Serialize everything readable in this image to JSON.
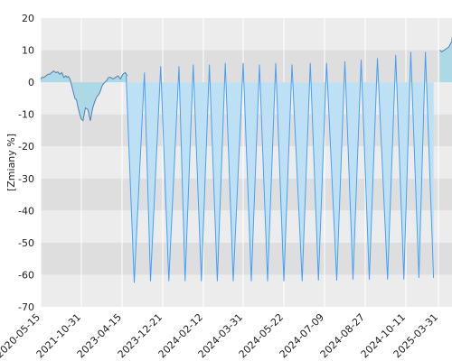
{
  "chart_data": {
    "type": "area",
    "ylabel": "[Zmiany %]",
    "xlabel": "",
    "title": "",
    "ylim": [
      -70,
      20
    ],
    "yticks": [
      20,
      10,
      0,
      -10,
      -20,
      -30,
      -40,
      -50,
      -60,
      -70
    ],
    "xticks": [
      "2020-05-15",
      "2021-10-31",
      "2023-04-15",
      "2023-12-21",
      "2024-02-12",
      "2024-03-31",
      "2024-05-22",
      "2024-07-09",
      "2024-08-27",
      "2024-10-11",
      "2025-03-31"
    ],
    "grid": true,
    "colors": {
      "fill": "#add8e6",
      "bar_fill": "#bde0f4",
      "line": "#4f7fb0",
      "bar_line": "#4a9ff5",
      "band_dark": "#dedede",
      "band_light": "#ececec",
      "gridline": "#ffffff"
    },
    "series": [
      {
        "x_tick_position": [
          0,
          0.03,
          0.08,
          0.13,
          0.18,
          0.22,
          0.27,
          0.32,
          0.37,
          0.42,
          0.47,
          0.52,
          0.57,
          0.62,
          0.65,
          0.68,
          0.72,
          0.76,
          0.8,
          0.84,
          0.88,
          0.92,
          0.96,
          1.0,
          1.04,
          1.1,
          1.16,
          1.22,
          1.28,
          1.33,
          1.38,
          1.42,
          1.46,
          1.5,
          1.54,
          1.58,
          1.62,
          1.67,
          1.72,
          1.78,
          1.84,
          1.9,
          1.96,
          2.02,
          2.08,
          2.13
        ],
        "values": [
          1.0,
          1.5,
          1.5,
          2.0,
          2.5,
          2.5,
          3.0,
          3.5,
          3.0,
          3.2,
          2.5,
          3.0,
          1.5,
          2.0,
          1.5,
          1.8,
          1.0,
          -1.0,
          -3.0,
          -5.0,
          -5.5,
          -8.0,
          -10.0,
          -11.5,
          -12.0,
          -8.0,
          -8.5,
          -12.0,
          -8.0,
          -6.0,
          -4.5,
          -4.0,
          -3.0,
          -1.5,
          -0.5,
          0.0,
          0.5,
          1.5,
          1.5,
          1.0,
          1.5,
          2.0,
          1.0,
          2.5,
          3.0,
          2.0
        ]
      }
    ],
    "spikes": {
      "x_tick_position": [
        2.1,
        2.3,
        2.55,
        2.7,
        2.95,
        3.15,
        3.4,
        3.55,
        3.75,
        3.95,
        4.15,
        4.35,
        4.55,
        4.75,
        5.0,
        5.2,
        5.4,
        5.6,
        5.8,
        6.0,
        6.2,
        6.45,
        6.65,
        6.85,
        7.05,
        7.3,
        7.5,
        7.7,
        7.9,
        8.1,
        8.3,
        8.55,
        8.75,
        8.95,
        9.15,
        9.4,
        9.6,
        9.85
      ],
      "values": [
        2.0,
        -62.5,
        3.0,
        -62.0,
        5.0,
        -62.0,
        5.0,
        -62.0,
        5.5,
        -62.0,
        5.5,
        -62.0,
        6.0,
        -62.0,
        6.0,
        -62.0,
        5.5,
        -62.0,
        6.0,
        -62.0,
        5.5,
        -62.0,
        6.0,
        -61.8,
        6.0,
        -61.8,
        6.5,
        -61.5,
        7.0,
        -61.5,
        7.5,
        -61.5,
        8.5,
        -61.5,
        9.5,
        -61.0,
        9.5,
        -61.0
      ]
    },
    "end_area": {
      "x_tick_position": [
        10.04,
        10.1,
        10.18,
        10.25,
        10.32,
        10.4,
        10.48,
        10.55
      ],
      "values": [
        10.0,
        9.5,
        10.0,
        10.5,
        11.0,
        12.5,
        13.0,
        14.0
      ]
    }
  }
}
